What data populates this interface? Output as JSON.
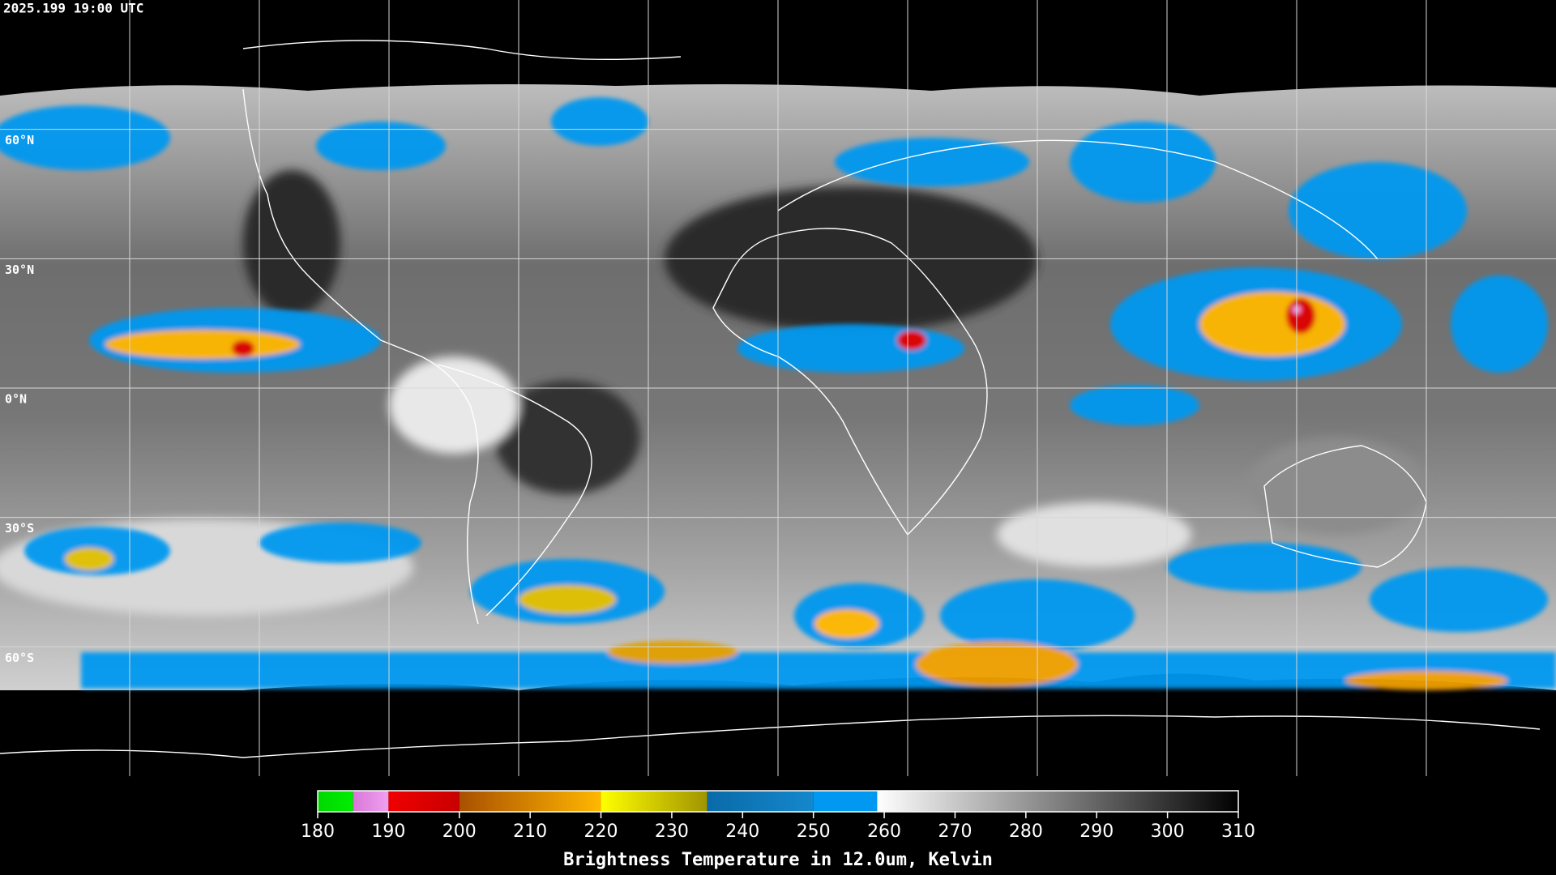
{
  "header": {
    "text": "2025.199 19:00 UTC"
  },
  "latitudes": [
    {
      "value": 60,
      "label": "60°N"
    },
    {
      "value": 30,
      "label": "30°N"
    },
    {
      "value": 0,
      "label": "0°N"
    },
    {
      "value": -30,
      "label": "30°S"
    },
    {
      "value": -60,
      "label": "60°S"
    }
  ],
  "colorbar": {
    "title": "Brightness Temperature in 12.0um, Kelvin",
    "lim": [
      180,
      310
    ],
    "ticks": [
      180,
      190,
      200,
      210,
      220,
      230,
      240,
      250,
      260,
      270,
      280,
      290,
      300,
      310
    ],
    "segments": [
      {
        "from": 180,
        "to": 185,
        "colors": [
          "#00d800",
          "#00ee00"
        ]
      },
      {
        "from": 185,
        "to": 190,
        "colors": [
          "#d878d8",
          "#f0a0f0"
        ]
      },
      {
        "from": 190,
        "to": 200,
        "colors": [
          "#f00000",
          "#c80000"
        ]
      },
      {
        "from": 200,
        "to": 220,
        "colors": [
          "#a85000",
          "#ffb800"
        ]
      },
      {
        "from": 220,
        "to": 235,
        "colors": [
          "#ffff00",
          "#a09400"
        ]
      },
      {
        "from": 235,
        "to": 250,
        "colors": [
          "#0a6aa8",
          "#1488cc"
        ]
      },
      {
        "from": 250,
        "to": 259,
        "colors": [
          "#0098f0",
          "#0098f0"
        ]
      },
      {
        "from": 259,
        "to": 310,
        "colors": [
          "#ffffff",
          "#000000"
        ]
      }
    ]
  }
}
